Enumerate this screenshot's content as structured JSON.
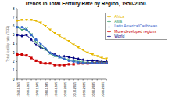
{
  "chart_data": {
    "type": "line",
    "title": "Trends in Total Fertility Rate by Region, 1950-2050.",
    "y_label": "Total fertility rate (TFR)",
    "categories": [
      "1950-1955",
      null,
      "1960-1965",
      null,
      "1970-1975",
      null,
      "1980-1985",
      null,
      "1990-1995",
      null,
      "2000-2005",
      null,
      "2010-2015",
      null,
      "2020-2025",
      null,
      "2030-2035",
      null,
      "2040-2045",
      null
    ],
    "ylim": [
      0,
      8
    ],
    "yticks": [
      0,
      1,
      2,
      3,
      4,
      5,
      6,
      7,
      8
    ],
    "grid": false,
    "legend": "upper right",
    "series": [
      {
        "name": "World",
        "color": "#000080",
        "marker": "diamond",
        "values": [
          5.0,
          4.9,
          5.0,
          4.5,
          3.9,
          3.6,
          3.4,
          3.0,
          2.8,
          2.6,
          2.6,
          2.5,
          2.4,
          2.3,
          2.2,
          2.1,
          2.1,
          2.05,
          2.0,
          2.0
        ]
      },
      {
        "name": "More developed regions",
        "color": "#cc0000",
        "marker": "square",
        "values": [
          2.8,
          2.8,
          2.7,
          2.4,
          2.1,
          1.9,
          1.8,
          1.8,
          1.6,
          1.6,
          1.6,
          1.7,
          1.7,
          1.8,
          1.8,
          1.8,
          1.85,
          1.85,
          1.85,
          1.85
        ]
      },
      {
        "name": "Africa",
        "color": "#e6b800",
        "marker": "triangle",
        "values": [
          6.6,
          6.7,
          6.7,
          6.7,
          6.6,
          6.4,
          6.0,
          5.6,
          5.2,
          4.9,
          4.6,
          4.3,
          3.9,
          3.6,
          3.3,
          3.0,
          2.8,
          2.6,
          2.4,
          2.3
        ]
      },
      {
        "name": "Asia",
        "color": "#339966",
        "marker": "cross",
        "values": [
          5.9,
          5.6,
          5.7,
          5.1,
          4.2,
          3.7,
          3.4,
          2.9,
          2.6,
          2.5,
          2.3,
          2.2,
          2.1,
          2.0,
          1.95,
          1.9,
          1.9,
          1.9,
          1.9,
          1.9
        ]
      },
      {
        "name": "Latin America/Caribbean",
        "color": "#3366cc",
        "marker": "circle",
        "values": [
          5.9,
          5.9,
          5.6,
          5.0,
          4.5,
          4.0,
          3.5,
          3.0,
          2.7,
          2.5,
          2.3,
          2.1,
          2.0,
          1.9,
          1.85,
          1.85,
          1.85,
          1.85,
          1.85,
          1.85
        ]
      }
    ]
  }
}
